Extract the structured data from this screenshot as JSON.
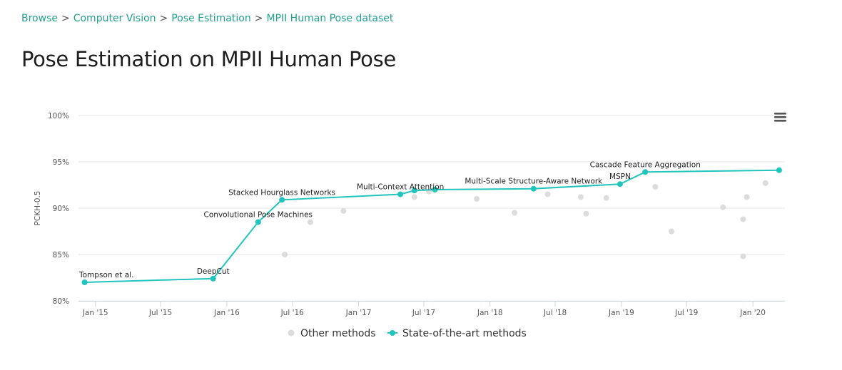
{
  "breadcrumb": {
    "items": [
      "Browse",
      "Computer Vision",
      "Pose Estimation",
      "MPII Human Pose dataset"
    ],
    "separator": ">"
  },
  "page": {
    "title": "Pose Estimation on MPII Human Pose"
  },
  "colors": {
    "accent": "#21a08e",
    "sota": "#21c5bd",
    "other": "#dcdcdc",
    "grid": "#e6e6e6"
  },
  "chart_data": {
    "type": "line",
    "title": "",
    "xlabel": "",
    "ylabel": "PCKH-0.5",
    "ylim": [
      80,
      100
    ],
    "yticks": [
      {
        "value": 100,
        "label": "100%"
      },
      {
        "value": 95,
        "label": "95%"
      },
      {
        "value": 90,
        "label": "90%"
      },
      {
        "value": 85,
        "label": "85%"
      },
      {
        "value": 80,
        "label": "80%"
      }
    ],
    "xlim": [
      "2014-11-15",
      "2020-03-30"
    ],
    "xticks": [
      {
        "date": "2015-01-01",
        "label": "Jan '15"
      },
      {
        "date": "2015-07-01",
        "label": "Jul '15"
      },
      {
        "date": "2016-01-01",
        "label": "Jan '16"
      },
      {
        "date": "2016-07-01",
        "label": "Jul '16"
      },
      {
        "date": "2017-01-01",
        "label": "Jan '17"
      },
      {
        "date": "2017-07-01",
        "label": "Jul '17"
      },
      {
        "date": "2018-01-01",
        "label": "Jan '18"
      },
      {
        "date": "2018-07-01",
        "label": "Jul '18"
      },
      {
        "date": "2019-01-01",
        "label": "Jan '19"
      },
      {
        "date": "2019-07-01",
        "label": "Jul '19"
      },
      {
        "date": "2020-01-01",
        "label": "Jan '20"
      }
    ],
    "grid": true,
    "legend_position": "bottom-center",
    "series": [
      {
        "name": "Other methods",
        "kind": "scatter",
        "points": [
          {
            "x": "2016-06-10",
            "y": 85.0
          },
          {
            "x": "2016-08-20",
            "y": 88.5
          },
          {
            "x": "2016-11-20",
            "y": 89.7
          },
          {
            "x": "2017-06-05",
            "y": 91.2
          },
          {
            "x": "2017-07-15",
            "y": 91.8
          },
          {
            "x": "2017-11-25",
            "y": 91.0
          },
          {
            "x": "2018-03-10",
            "y": 89.5
          },
          {
            "x": "2018-06-10",
            "y": 91.5
          },
          {
            "x": "2018-09-10",
            "y": 91.2
          },
          {
            "x": "2018-09-25",
            "y": 89.4
          },
          {
            "x": "2018-11-20",
            "y": 91.1
          },
          {
            "x": "2019-04-05",
            "y": 92.3
          },
          {
            "x": "2019-05-20",
            "y": 87.5
          },
          {
            "x": "2019-10-10",
            "y": 90.1
          },
          {
            "x": "2019-12-05",
            "y": 88.8
          },
          {
            "x": "2019-12-05",
            "y": 84.8
          },
          {
            "x": "2019-12-15",
            "y": 91.2
          },
          {
            "x": "2020-02-05",
            "y": 92.7
          }
        ]
      },
      {
        "name": "State-of-the-art methods",
        "kind": "line",
        "points": [
          {
            "x": "2014-12-02",
            "y": 82.0,
            "label": "Tompson et al."
          },
          {
            "x": "2015-11-24",
            "y": 82.4,
            "label": "DeepCut"
          },
          {
            "x": "2016-03-28",
            "y": 88.5,
            "label": "Convolutional Pose Machines"
          },
          {
            "x": "2016-06-02",
            "y": 90.9,
            "label": "Stacked Hourglass Networks"
          },
          {
            "x": "2017-04-27",
            "y": 91.5,
            "label": "Multi-Context Attention"
          },
          {
            "x": "2017-06-05",
            "y": 91.9,
            "label": ""
          },
          {
            "x": "2017-08-01",
            "y": 92.0,
            "label": ""
          },
          {
            "x": "2018-05-02",
            "y": 92.1,
            "label": "Multi-Scale Structure-Aware Network"
          },
          {
            "x": "2018-12-28",
            "y": 92.6,
            "label": "MSPN"
          },
          {
            "x": "2019-03-08",
            "y": 93.9,
            "label": "Cascade Feature Aggregation"
          },
          {
            "x": "2020-03-14",
            "y": 94.1,
            "label": ""
          }
        ]
      }
    ]
  },
  "menu": {
    "icon": "hamburger-menu-icon"
  }
}
